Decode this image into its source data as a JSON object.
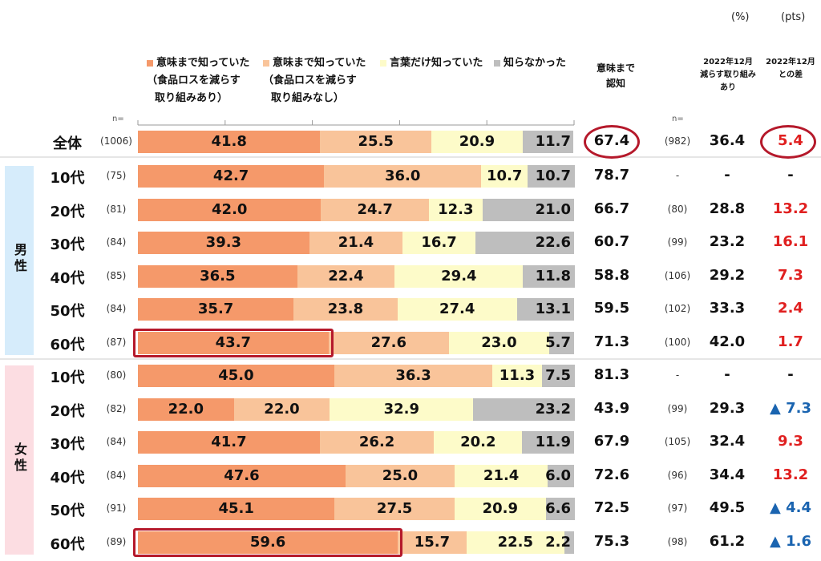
{
  "units": {
    "percent": "(%)",
    "points": "(pts)"
  },
  "legend": [
    {
      "label": "意味まで知っていた",
      "sub1": "（食品ロスを減らす",
      "sub2": "取り組みあり）",
      "color": "#f5996a"
    },
    {
      "label": "意味まで知っていた",
      "sub1": "（食品ロスを減らす",
      "sub2": "取り組みなし）",
      "color": "#f9c49a"
    },
    {
      "label": "言葉だけ知っていた",
      "sub1": "",
      "sub2": "",
      "color": "#fdfbc9"
    },
    {
      "label": "知らなかった",
      "sub1": "",
      "sub2": "",
      "color": "#bebebe"
    }
  ],
  "columns": {
    "n_label": "n=",
    "awareness_line1": "意味まで",
    "awareness_line2": "認知",
    "n2_label": "n=",
    "dec2022_line1": "2022年12月",
    "dec2022_line2": "減らす取り組み",
    "dec2022_line3": "あり",
    "diff_line1": "2022年12月",
    "diff_line2": "との差"
  },
  "groups": {
    "male": "男性",
    "female": "女性"
  },
  "group_colors": {
    "male": "#d6ecfb",
    "female": "#fcdde2"
  },
  "highlight_color": "#b5192b",
  "up_color": "#1a64b0",
  "diff_color": "#e02020",
  "chart_data": {
    "type": "bar",
    "stacked": true,
    "orientation": "horizontal",
    "xlim": [
      0,
      100
    ],
    "categories": [
      "全体",
      "10代",
      "20代",
      "30代",
      "40代",
      "50代",
      "60代",
      "10代",
      "20代",
      "30代",
      "40代",
      "50代",
      "60代"
    ],
    "group": [
      "",
      "男性",
      "男性",
      "男性",
      "男性",
      "男性",
      "男性",
      "女性",
      "女性",
      "女性",
      "女性",
      "女性",
      "女性"
    ],
    "n": [
      "(1006)",
      "(75)",
      "(81)",
      "(84)",
      "(85)",
      "(84)",
      "(87)",
      "(80)",
      "(82)",
      "(84)",
      "(84)",
      "(91)",
      "(89)"
    ],
    "series": [
      {
        "name": "意味まで知っていた（食品ロスを減らす取り組みあり）",
        "values": [
          41.8,
          42.7,
          42.0,
          39.3,
          36.5,
          35.7,
          43.7,
          45.0,
          22.0,
          41.7,
          47.6,
          45.1,
          59.6
        ]
      },
      {
        "name": "意味まで知っていた（食品ロスを減らす取り組みなし）",
        "values": [
          25.5,
          36.0,
          24.7,
          21.4,
          22.4,
          23.8,
          27.6,
          36.3,
          22.0,
          26.2,
          25.0,
          27.5,
          15.7
        ]
      },
      {
        "name": "言葉だけ知っていた",
        "values": [
          20.9,
          10.7,
          12.3,
          16.7,
          29.4,
          27.4,
          23.0,
          11.3,
          32.9,
          20.2,
          21.4,
          20.9,
          22.5
        ]
      },
      {
        "name": "知らなかった",
        "values": [
          11.7,
          10.7,
          21.0,
          22.6,
          11.8,
          13.1,
          5.7,
          7.5,
          23.2,
          11.9,
          6.0,
          6.6,
          2.2
        ]
      }
    ],
    "awareness": [
      "67.4",
      "78.7",
      "66.7",
      "60.7",
      "58.8",
      "59.5",
      "71.3",
      "81.3",
      "43.9",
      "67.9",
      "72.6",
      "72.5",
      "75.3"
    ],
    "n_2022": [
      "(982)",
      "-",
      "(80)",
      "(99)",
      "(106)",
      "(102)",
      "(100)",
      "-",
      "(99)",
      "(105)",
      "(96)",
      "(97)",
      "(98)"
    ],
    "dec2022": [
      "36.4",
      "-",
      "28.8",
      "23.2",
      "29.2",
      "33.3",
      "42.0",
      "-",
      "29.3",
      "32.4",
      "34.4",
      "49.5",
      "61.2"
    ],
    "diff": [
      "5.4",
      "-",
      "13.2",
      "16.1",
      "7.3",
      "2.4",
      "1.7",
      "-",
      "▲ 7.3",
      "9.3",
      "13.2",
      "▲ 4.4",
      "▲ 1.6"
    ],
    "highlighted_rows": [
      6,
      12
    ]
  }
}
